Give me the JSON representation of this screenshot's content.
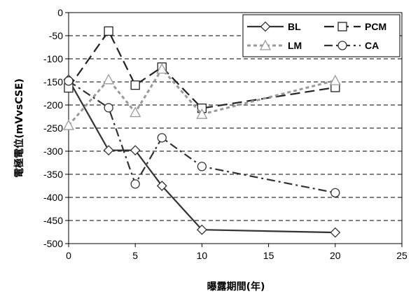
{
  "chart_data": {
    "type": "line",
    "title": "",
    "xlabel": "曝露期間(年)",
    "ylabel": "電極電位(mVvsCSE)",
    "xlim": [
      0,
      25
    ],
    "ylim": [
      -500,
      0
    ],
    "x_ticks": [
      "0",
      "5",
      "10",
      "15",
      "20",
      "25"
    ],
    "y_ticks": [
      "0",
      "-50",
      "-100",
      "-150",
      "-200",
      "-250",
      "-300",
      "-350",
      "-400",
      "-450",
      "-500"
    ],
    "grid": "horizontal dashed",
    "legend_position": "top-right",
    "series": [
      {
        "name": "BL",
        "marker": "diamond",
        "line": "solid",
        "color": "#333333",
        "x": [
          0,
          3,
          5,
          7,
          10,
          20
        ],
        "y": [
          -145,
          -298,
          -298,
          -375,
          -470,
          -476
        ]
      },
      {
        "name": "PCM",
        "marker": "square",
        "line": "long-dash",
        "color": "#222222",
        "x": [
          0,
          3,
          5,
          7,
          10,
          20
        ],
        "y": [
          -163,
          -40,
          -157,
          -118,
          -207,
          -162
        ]
      },
      {
        "name": "LM",
        "marker": "triangle",
        "line": "short-dash",
        "color": "#9a9a9a",
        "x": [
          0,
          3,
          5,
          7,
          10,
          20
        ],
        "y": [
          -244,
          -145,
          -216,
          -122,
          -220,
          -147
        ]
      },
      {
        "name": "CA",
        "marker": "circle",
        "line": "dash-dot",
        "color": "#333333",
        "x": [
          0,
          3,
          5,
          7,
          10,
          20
        ],
        "y": [
          -148,
          -206,
          -371,
          -271,
          -333,
          -390
        ]
      }
    ]
  }
}
